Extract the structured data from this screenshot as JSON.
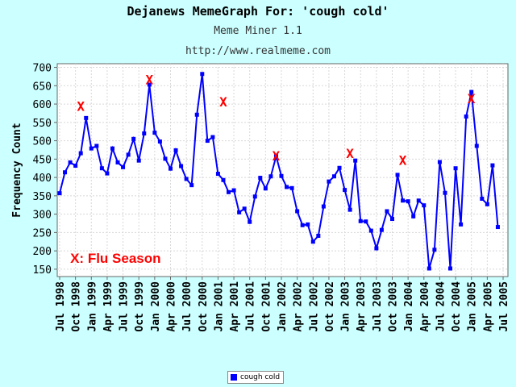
{
  "header": {
    "title": "Dejanews MemeGraph For: 'cough cold'",
    "subtitle": "Meme Miner 1.1",
    "url": "http://www.realmeme.com"
  },
  "colors": {
    "background": "#ccffff",
    "line": "#0000ff",
    "marker": "#ff0000"
  },
  "chart_data": {
    "type": "line",
    "ylabel": "Frequency Count",
    "xlabel": "",
    "ylim": [
      130,
      710
    ],
    "yticks": [
      150,
      200,
      250,
      300,
      350,
      400,
      450,
      500,
      550,
      600,
      650,
      700
    ],
    "xticks": [
      "Jul 1998",
      "Oct 1998",
      "Jan 1999",
      "Apr 1999",
      "Jul 1999",
      "Oct 1999",
      "Jan 2000",
      "Apr 2000",
      "Jul 2000",
      "Oct 2000",
      "Jan 2001",
      "Apr 2001",
      "Jul 2001",
      "Oct 2001",
      "Jan 2002",
      "Apr 2002",
      "Jul 2002",
      "Oct 2002",
      "Jan 2003",
      "Apr 2003",
      "Jul 2003",
      "Oct 2003",
      "Jan 2004",
      "Apr 2004",
      "Jul 2004",
      "Oct 2004",
      "Jan 2005",
      "Apr 2005",
      "Jul 2005"
    ],
    "grid": true,
    "legend_position": "bottom-center",
    "series": [
      {
        "name": "cough cold",
        "color": "#0000ff",
        "x_start": "Jul 1998",
        "x_end": "Jul 2005",
        "values": [
          357,
          414,
          441,
          432,
          466,
          562,
          479,
          486,
          425,
          411,
          479,
          441,
          428,
          462,
          505,
          446,
          520,
          653,
          522,
          498,
          451,
          424,
          474,
          431,
          396,
          379,
          571,
          682,
          500,
          510,
          410,
          393,
          360,
          365,
          305,
          315,
          279,
          348,
          399,
          370,
          403,
          458,
          404,
          374,
          371,
          308,
          270,
          272,
          225,
          241,
          321,
          389,
          403,
          426,
          366,
          312,
          446,
          281,
          280,
          255,
          207,
          257,
          308,
          287,
          407,
          337,
          335,
          294,
          337,
          324,
          152,
          203,
          442,
          358,
          152,
          425,
          272,
          566,
          633,
          486,
          342,
          327,
          433,
          265
        ]
      }
    ],
    "annotations": [
      {
        "text": "X",
        "x": "Nov 1998",
        "y": 595
      },
      {
        "text": "X",
        "x": "Dec 1999",
        "y": 667
      },
      {
        "text": "X",
        "x": "Feb 2001",
        "y": 607
      },
      {
        "text": "X",
        "x": "Dec 2001",
        "y": 460
      },
      {
        "text": "X",
        "x": "Feb 2003",
        "y": 466
      },
      {
        "text": "X",
        "x": "Dec 2003",
        "y": 447
      },
      {
        "text": "X",
        "x": "Jan 2005",
        "y": 616
      },
      {
        "text": "X: Flu Season",
        "x": "Sep 1998",
        "y": 181
      }
    ]
  }
}
